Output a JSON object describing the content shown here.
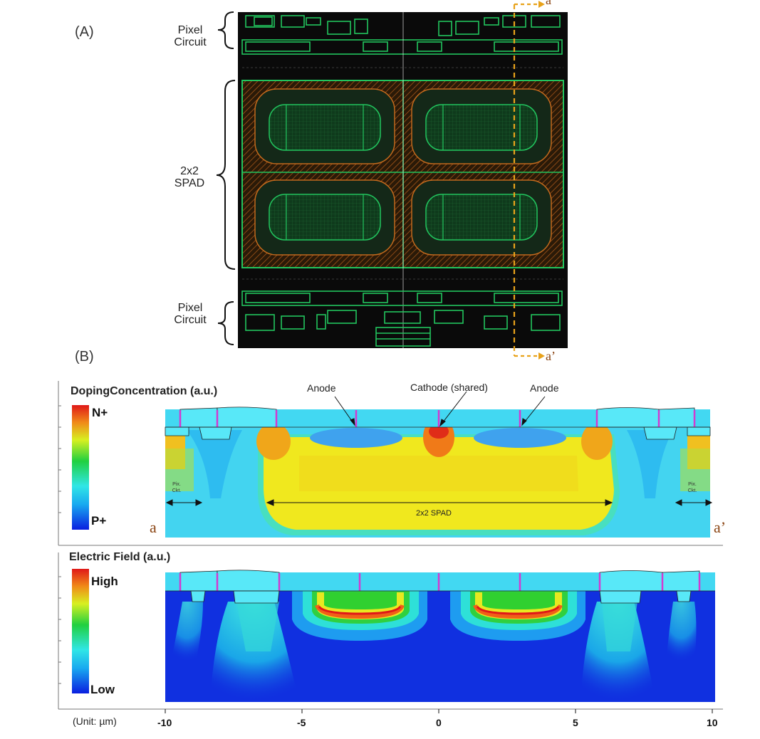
{
  "panel_a": {
    "label": "(A)",
    "pixel_circuit_top": [
      "Pixel",
      "Circuit"
    ],
    "spad_label": [
      "2x2",
      "SPAD"
    ],
    "pixel_circuit_bottom": [
      "Pixel",
      "Circuit"
    ],
    "cut_start": "a",
    "cut_end": "a’"
  },
  "panel_b": {
    "label": "(B)",
    "doping": {
      "title": "DopingConcentration (a.u.)",
      "legend_top": "N+",
      "legend_bottom": "P+",
      "anode_left": "Anode",
      "cathode": "Cathode (shared)",
      "anode_right": "Anode",
      "pix_ckt_left": [
        "Pix.",
        "Ckt."
      ],
      "pix_ckt_right": [
        "Pix.",
        "Ckt."
      ],
      "spad_span": "2x2 SPAD",
      "edge_left": "a",
      "edge_right": "a’"
    },
    "efield": {
      "title": "Electric Field (a.u.)",
      "legend_top": "High",
      "legend_bottom": "Low"
    },
    "axis": {
      "unit": "(Unit: µm)",
      "ticks": [
        "-10",
        "-5",
        "0",
        "5",
        "10"
      ]
    }
  },
  "colors": {
    "layout_bg": "#0a0a0a",
    "layout_green": "#22c55e",
    "layout_orange": "#c2691d",
    "cut_line": "#e8a21a",
    "doping_yellow": "#f0e51c",
    "doping_cyan": "#3fd0f0",
    "field_blue": "#1030e0"
  }
}
